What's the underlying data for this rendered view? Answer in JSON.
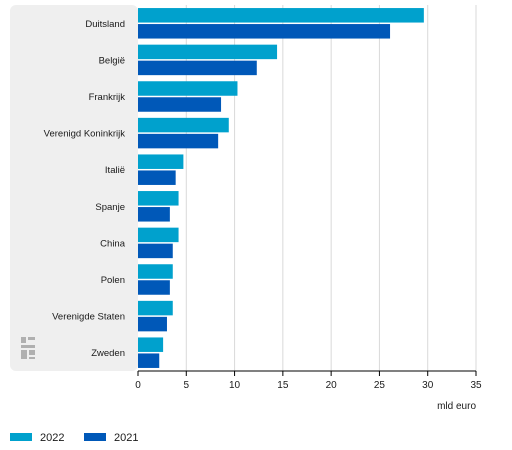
{
  "chart_data": {
    "type": "bar",
    "orientation": "horizontal",
    "categories": [
      "Duitsland",
      "België",
      "Frankrijk",
      "Verenigd Koninkrijk",
      "Italië",
      "Spanje",
      "China",
      "Polen",
      "Verenigde Staten",
      "Zweden"
    ],
    "series": [
      {
        "name": "2022",
        "color": "#00a1cd",
        "values": [
          29.6,
          14.4,
          10.3,
          9.4,
          4.7,
          4.2,
          4.2,
          3.6,
          3.6,
          2.6
        ]
      },
      {
        "name": "2021",
        "color": "#0058b8",
        "values": [
          26.1,
          12.3,
          8.6,
          8.3,
          3.9,
          3.3,
          3.6,
          3.3,
          3.0,
          2.2
        ]
      }
    ],
    "xlabel": "mld euro",
    "xlim": [
      0,
      35
    ],
    "xticks": [
      0,
      5,
      10,
      15,
      20,
      25,
      30,
      35
    ],
    "grid": true,
    "legend_position": "bottom-left",
    "label_panel_color": "#efefef",
    "logo_icon": "cbs-logo-icon"
  }
}
